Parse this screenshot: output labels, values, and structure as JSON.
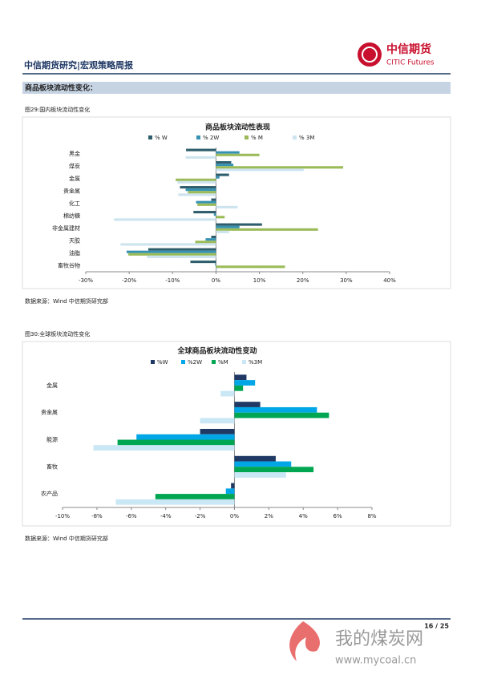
{
  "header": {
    "title": "中信期货研究|宏观策略周报",
    "logo_cn": "中信期货",
    "logo_en": "CITIC Futures"
  },
  "section": "商品板块流动性变化：",
  "figures": [
    {
      "caption": "图29:国内板块流动性变化",
      "source": "数据来源：Wind  中信期货研究部"
    },
    {
      "caption": "图30:全球板块流动性变化",
      "source": "数据来源：Wind  中信期货研究部"
    }
  ],
  "chart_data": [
    {
      "type": "hbar",
      "title": "商品板块流动性表现",
      "categories": [
        "黑金",
        "煤炭",
        "金属",
        "贵金属",
        "化工",
        "棉纺糖",
        "非金属建材",
        "天胶",
        "油脂",
        "畜牧谷物"
      ],
      "series": [
        {
          "name": "% W",
          "color": "#2e5e6b",
          "values": [
            -6.9,
            3.5,
            3,
            -8.3,
            -1.1,
            -5.2,
            10.6,
            -1.1,
            -15.6,
            -5.9
          ]
        },
        {
          "name": "% 2W",
          "color": "#3592b3",
          "values": [
            5.4,
            4,
            0.8,
            -7,
            -4.6,
            -0.5,
            5.4,
            -2.4,
            -20.6,
            -0.2
          ]
        },
        {
          "name": "% M",
          "color": "#9bbb59",
          "values": [
            10,
            29.3,
            -9.3,
            -6.5,
            -4.3,
            2,
            23.5,
            -4.8,
            -20.2,
            15.9
          ]
        },
        {
          "name": "% 3M",
          "color": "#cde4ef",
          "values": [
            -7,
            20.2,
            -8.9,
            -8.7,
            5,
            -23.5,
            3,
            -22,
            -15.9,
            0.3
          ]
        }
      ],
      "xlim": [
        -30,
        40
      ],
      "xticks": [
        {
          "value": -30,
          "label": "-30%"
        },
        {
          "value": -20,
          "label": "-20%"
        },
        {
          "value": -10,
          "label": "-10%"
        },
        {
          "value": 0,
          "label": "0%"
        },
        {
          "value": 10,
          "label": "10%"
        },
        {
          "value": 20,
          "label": "20%"
        },
        {
          "value": 30,
          "label": "30%"
        },
        {
          "value": 40,
          "label": "40%"
        }
      ]
    },
    {
      "type": "hbar",
      "title": "全球商品板块流动性变动",
      "categories": [
        "金属",
        "贵金属",
        "能源",
        "畜牧",
        "农产品"
      ],
      "series": [
        {
          "name": "%W",
          "color": "#1f3864",
          "values": [
            0.7,
            1.5,
            -2,
            2.4,
            -0.2
          ]
        },
        {
          "name": "%2W",
          "color": "#00a6e6",
          "values": [
            1.2,
            4.8,
            -5.7,
            3.3,
            -0.5
          ]
        },
        {
          "name": "%M",
          "color": "#00a651",
          "values": [
            0.5,
            5.5,
            -6.8,
            4.6,
            -4.6
          ]
        },
        {
          "name": "%3M",
          "color": "#c9e7f5",
          "values": [
            -0.8,
            -2,
            -8.2,
            3,
            -6.9
          ]
        }
      ],
      "xlim": [
        -10,
        8
      ],
      "xticks": [
        {
          "value": -10,
          "label": "-10%"
        },
        {
          "value": -8,
          "label": "-8%"
        },
        {
          "value": -6,
          "label": "-6%"
        },
        {
          "value": -4,
          "label": "-4%"
        },
        {
          "value": -2,
          "label": "-2%"
        },
        {
          "value": 0,
          "label": "0%"
        },
        {
          "value": 2,
          "label": "2%"
        },
        {
          "value": 4,
          "label": "4%"
        },
        {
          "value": 6,
          "label": "6%"
        },
        {
          "value": 8,
          "label": "8%"
        }
      ]
    }
  ],
  "page_number": "16 / 25",
  "watermark": {
    "name": "我的煤炭网",
    "url": "www.mycoal.cn"
  }
}
